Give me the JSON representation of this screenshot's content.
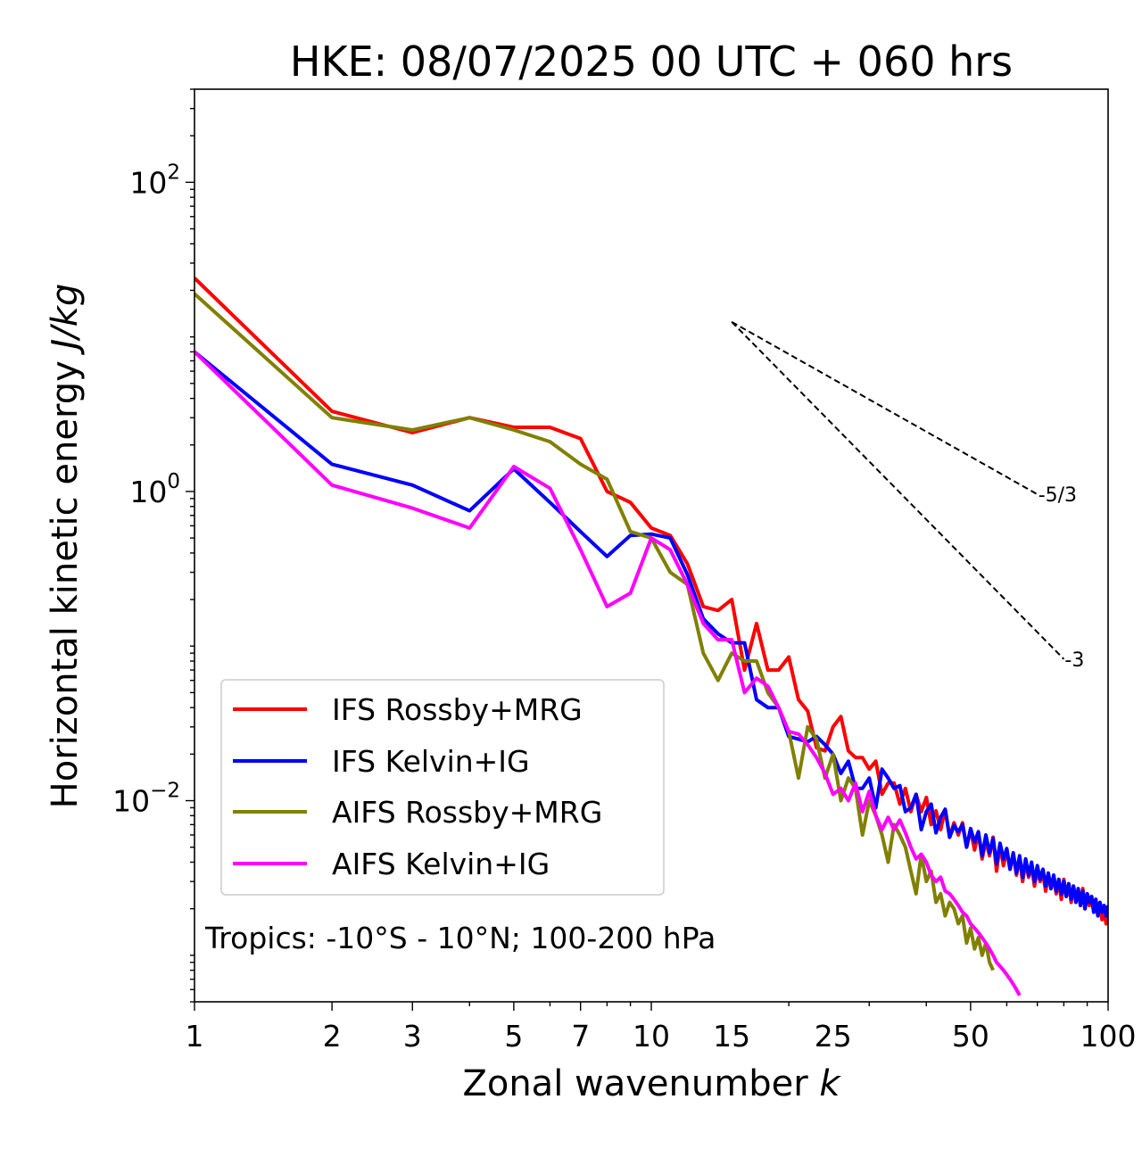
{
  "chart_data": {
    "type": "line",
    "title": "HKE: 08/07/2025 00 UTC + 060 hrs",
    "xlabel": "Zonal wavenumber",
    "xlabel_var": "k",
    "ylabel": "Horizontal kinetic energy",
    "ylabel_unit": "J/kg",
    "xscale": "log",
    "yscale": "log",
    "xlim": [
      1,
      100
    ],
    "ylim": [
      0.0005,
      400
    ],
    "x_ticks": [
      1,
      2,
      3,
      5,
      7,
      10,
      15,
      25,
      50,
      100
    ],
    "x_tick_labels": [
      "1",
      "2",
      "3",
      "5",
      "7",
      "10",
      "15",
      "25",
      "50",
      "100"
    ],
    "y_ticks": [
      0.01,
      1,
      100
    ],
    "y_tick_labels": [
      {
        "base": "10",
        "exp": "−2"
      },
      {
        "base": "10",
        "exp": "0"
      },
      {
        "base": "10",
        "exp": "2"
      }
    ],
    "legend_position": "lower-left",
    "annotation": "Tropics: -10°S - 10°N; 100-200 hPa",
    "reference_slopes": [
      {
        "label": "-5/3",
        "slope": -1.6667,
        "x": [
          15,
          70
        ],
        "y0": 12.5
      },
      {
        "label": "-3",
        "slope": -3,
        "x": [
          15,
          80
        ],
        "y0": 12.5
      }
    ],
    "series": [
      {
        "name": "IFS Rossby+MRG",
        "color": "#ff0000",
        "x": [
          1,
          2,
          3,
          4,
          5,
          6,
          7,
          8,
          9,
          10,
          11,
          12,
          13,
          14,
          15,
          16,
          17,
          18,
          19,
          20,
          21,
          22,
          23,
          24,
          25,
          26,
          27,
          28,
          29,
          30,
          31,
          32,
          33,
          34,
          35,
          36,
          37,
          38,
          39,
          40,
          41,
          42,
          43,
          44,
          45,
          46,
          47,
          48,
          49,
          50,
          51,
          52,
          53,
          54,
          55,
          56,
          57,
          58,
          59,
          60,
          61,
          62,
          63,
          64,
          65,
          66,
          67,
          68,
          69,
          70,
          71,
          72,
          73,
          74,
          75,
          76,
          77,
          78,
          79,
          80,
          81,
          82,
          83,
          84,
          85,
          86,
          87,
          88,
          89,
          90,
          91,
          92,
          93,
          94,
          95,
          96,
          97,
          98,
          99,
          100
        ],
        "y": [
          24.0,
          3.3,
          2.4,
          3.0,
          2.6,
          2.6,
          2.2,
          1.0,
          0.85,
          0.58,
          0.52,
          0.34,
          0.18,
          0.17,
          0.2,
          0.07,
          0.14,
          0.07,
          0.07,
          0.085,
          0.045,
          0.038,
          0.022,
          0.021,
          0.03,
          0.035,
          0.021,
          0.019,
          0.019,
          0.016,
          0.018,
          0.011,
          0.013,
          0.013,
          0.0095,
          0.012,
          0.0085,
          0.011,
          0.0085,
          0.0105,
          0.007,
          0.0086,
          0.0065,
          0.0088,
          0.0058,
          0.0072,
          0.006,
          0.0072,
          0.005,
          0.0065,
          0.0048,
          0.0062,
          0.0042,
          0.0055,
          0.0044,
          0.0058,
          0.0035,
          0.0052,
          0.0038,
          0.0048,
          0.0036,
          0.0045,
          0.0033,
          0.0043,
          0.003,
          0.004,
          0.0032,
          0.0038,
          0.0028,
          0.0036,
          0.003,
          0.0034,
          0.0026,
          0.0033,
          0.0027,
          0.0032,
          0.0025,
          0.003,
          0.0023,
          0.0031,
          0.0024,
          0.0029,
          0.0022,
          0.0028,
          0.0023,
          0.0026,
          0.0021,
          0.0027,
          0.002,
          0.0025,
          0.0021,
          0.0024,
          0.0019,
          0.0023,
          0.0018,
          0.0021,
          0.0017,
          0.0019,
          0.0016,
          0.0018
        ]
      },
      {
        "name": "IFS Kelvin+IG",
        "color": "#0000ff",
        "x": [
          1,
          2,
          3,
          4,
          5,
          6,
          7,
          8,
          9,
          10,
          11,
          12,
          13,
          14,
          15,
          16,
          17,
          18,
          19,
          20,
          21,
          22,
          23,
          24,
          25,
          26,
          27,
          28,
          29,
          30,
          31,
          32,
          33,
          34,
          35,
          36,
          37,
          38,
          39,
          40,
          41,
          42,
          43,
          44,
          45,
          46,
          47,
          48,
          49,
          50,
          51,
          52,
          53,
          54,
          55,
          56,
          57,
          58,
          59,
          60,
          61,
          62,
          63,
          64,
          65,
          66,
          67,
          68,
          69,
          70,
          71,
          72,
          73,
          74,
          75,
          76,
          77,
          78,
          79,
          80,
          81,
          82,
          83,
          84,
          85,
          86,
          87,
          88,
          89,
          90,
          91,
          92,
          93,
          94,
          95,
          96,
          97,
          98,
          99,
          100
        ],
        "y": [
          8.0,
          1.5,
          1.1,
          0.75,
          1.4,
          0.85,
          0.55,
          0.38,
          0.52,
          0.53,
          0.5,
          0.29,
          0.15,
          0.12,
          0.105,
          0.105,
          0.045,
          0.04,
          0.04,
          0.026,
          0.025,
          0.024,
          0.026,
          0.023,
          0.02,
          0.015,
          0.018,
          0.012,
          0.012,
          0.014,
          0.009,
          0.016,
          0.014,
          0.012,
          0.0125,
          0.0085,
          0.009,
          0.011,
          0.0065,
          0.0085,
          0.0095,
          0.0062,
          0.0078,
          0.0088,
          0.0058,
          0.0069,
          0.0063,
          0.007,
          0.005,
          0.0066,
          0.0054,
          0.0063,
          0.0044,
          0.006,
          0.0046,
          0.0057,
          0.0039,
          0.0053,
          0.0042,
          0.0049,
          0.0036,
          0.0046,
          0.0034,
          0.0044,
          0.0032,
          0.0042,
          0.0033,
          0.004,
          0.003,
          0.0038,
          0.0031,
          0.0036,
          0.0028,
          0.0034,
          0.0027,
          0.0033,
          0.0026,
          0.0031,
          0.0025,
          0.003,
          0.0024,
          0.0029,
          0.0023,
          0.0028,
          0.0022,
          0.0027,
          0.0021,
          0.0026,
          0.002,
          0.0025,
          0.0022,
          0.0024,
          0.0019,
          0.0023,
          0.0018,
          0.0022,
          0.0019,
          0.0021,
          0.0018,
          0.0021
        ]
      },
      {
        "name": "AIFS Rossby+MRG",
        "color": "#808000",
        "x": [
          1,
          2,
          3,
          4,
          5,
          6,
          7,
          8,
          9,
          10,
          11,
          12,
          13,
          14,
          15,
          16,
          17,
          18,
          19,
          20,
          21,
          22,
          23,
          24,
          25,
          26,
          27,
          28,
          29,
          30,
          31,
          32,
          33,
          34,
          35,
          36,
          37,
          38,
          39,
          40,
          41,
          42,
          43,
          44,
          45,
          46,
          47,
          48,
          49,
          50,
          51,
          52,
          53,
          54,
          55,
          56
        ],
        "y": [
          19.0,
          3.0,
          2.5,
          3.0,
          2.5,
          2.1,
          1.5,
          1.2,
          0.55,
          0.5,
          0.3,
          0.25,
          0.09,
          0.06,
          0.09,
          0.08,
          0.08,
          0.05,
          0.04,
          0.028,
          0.014,
          0.03,
          0.025,
          0.014,
          0.02,
          0.01,
          0.014,
          0.012,
          0.006,
          0.01,
          0.008,
          0.006,
          0.004,
          0.007,
          0.006,
          0.005,
          0.0035,
          0.0025,
          0.0045,
          0.003,
          0.0035,
          0.0022,
          0.0025,
          0.0018,
          0.0022,
          0.002,
          0.0016,
          0.0018,
          0.0012,
          0.0015,
          0.0011,
          0.0013,
          0.001,
          0.0012,
          0.0009,
          0.0008
        ]
      },
      {
        "name": "AIFS Kelvin+IG",
        "color": "#ff00ff",
        "x": [
          1,
          2,
          3,
          4,
          5,
          6,
          7,
          8,
          9,
          10,
          11,
          12,
          13,
          14,
          15,
          16,
          17,
          18,
          19,
          20,
          21,
          22,
          23,
          24,
          25,
          26,
          27,
          28,
          29,
          30,
          31,
          32,
          33,
          34,
          35,
          36,
          37,
          38,
          39,
          40,
          41,
          42,
          43,
          44,
          45,
          46,
          47,
          48,
          49,
          50,
          51,
          52,
          53,
          54,
          55,
          56,
          57,
          58,
          59,
          60,
          61,
          62,
          63,
          64
        ],
        "y": [
          8.0,
          1.1,
          0.78,
          0.58,
          1.45,
          1.05,
          0.42,
          0.18,
          0.22,
          0.5,
          0.42,
          0.25,
          0.14,
          0.11,
          0.11,
          0.05,
          0.062,
          0.055,
          0.04,
          0.028,
          0.027,
          0.023,
          0.019,
          0.015,
          0.011,
          0.012,
          0.01,
          0.013,
          0.0085,
          0.0115,
          0.008,
          0.0065,
          0.0078,
          0.0065,
          0.0075,
          0.0062,
          0.005,
          0.0042,
          0.0045,
          0.004,
          0.0033,
          0.003,
          0.0032,
          0.0026,
          0.0025,
          0.0023,
          0.0021,
          0.0019,
          0.0018,
          0.0016,
          0.0015,
          0.0014,
          0.0013,
          0.0012,
          0.0011,
          0.001,
          0.0009,
          0.00085,
          0.0008,
          0.00075,
          0.0007,
          0.00065,
          0.0006,
          0.00055
        ]
      }
    ]
  }
}
